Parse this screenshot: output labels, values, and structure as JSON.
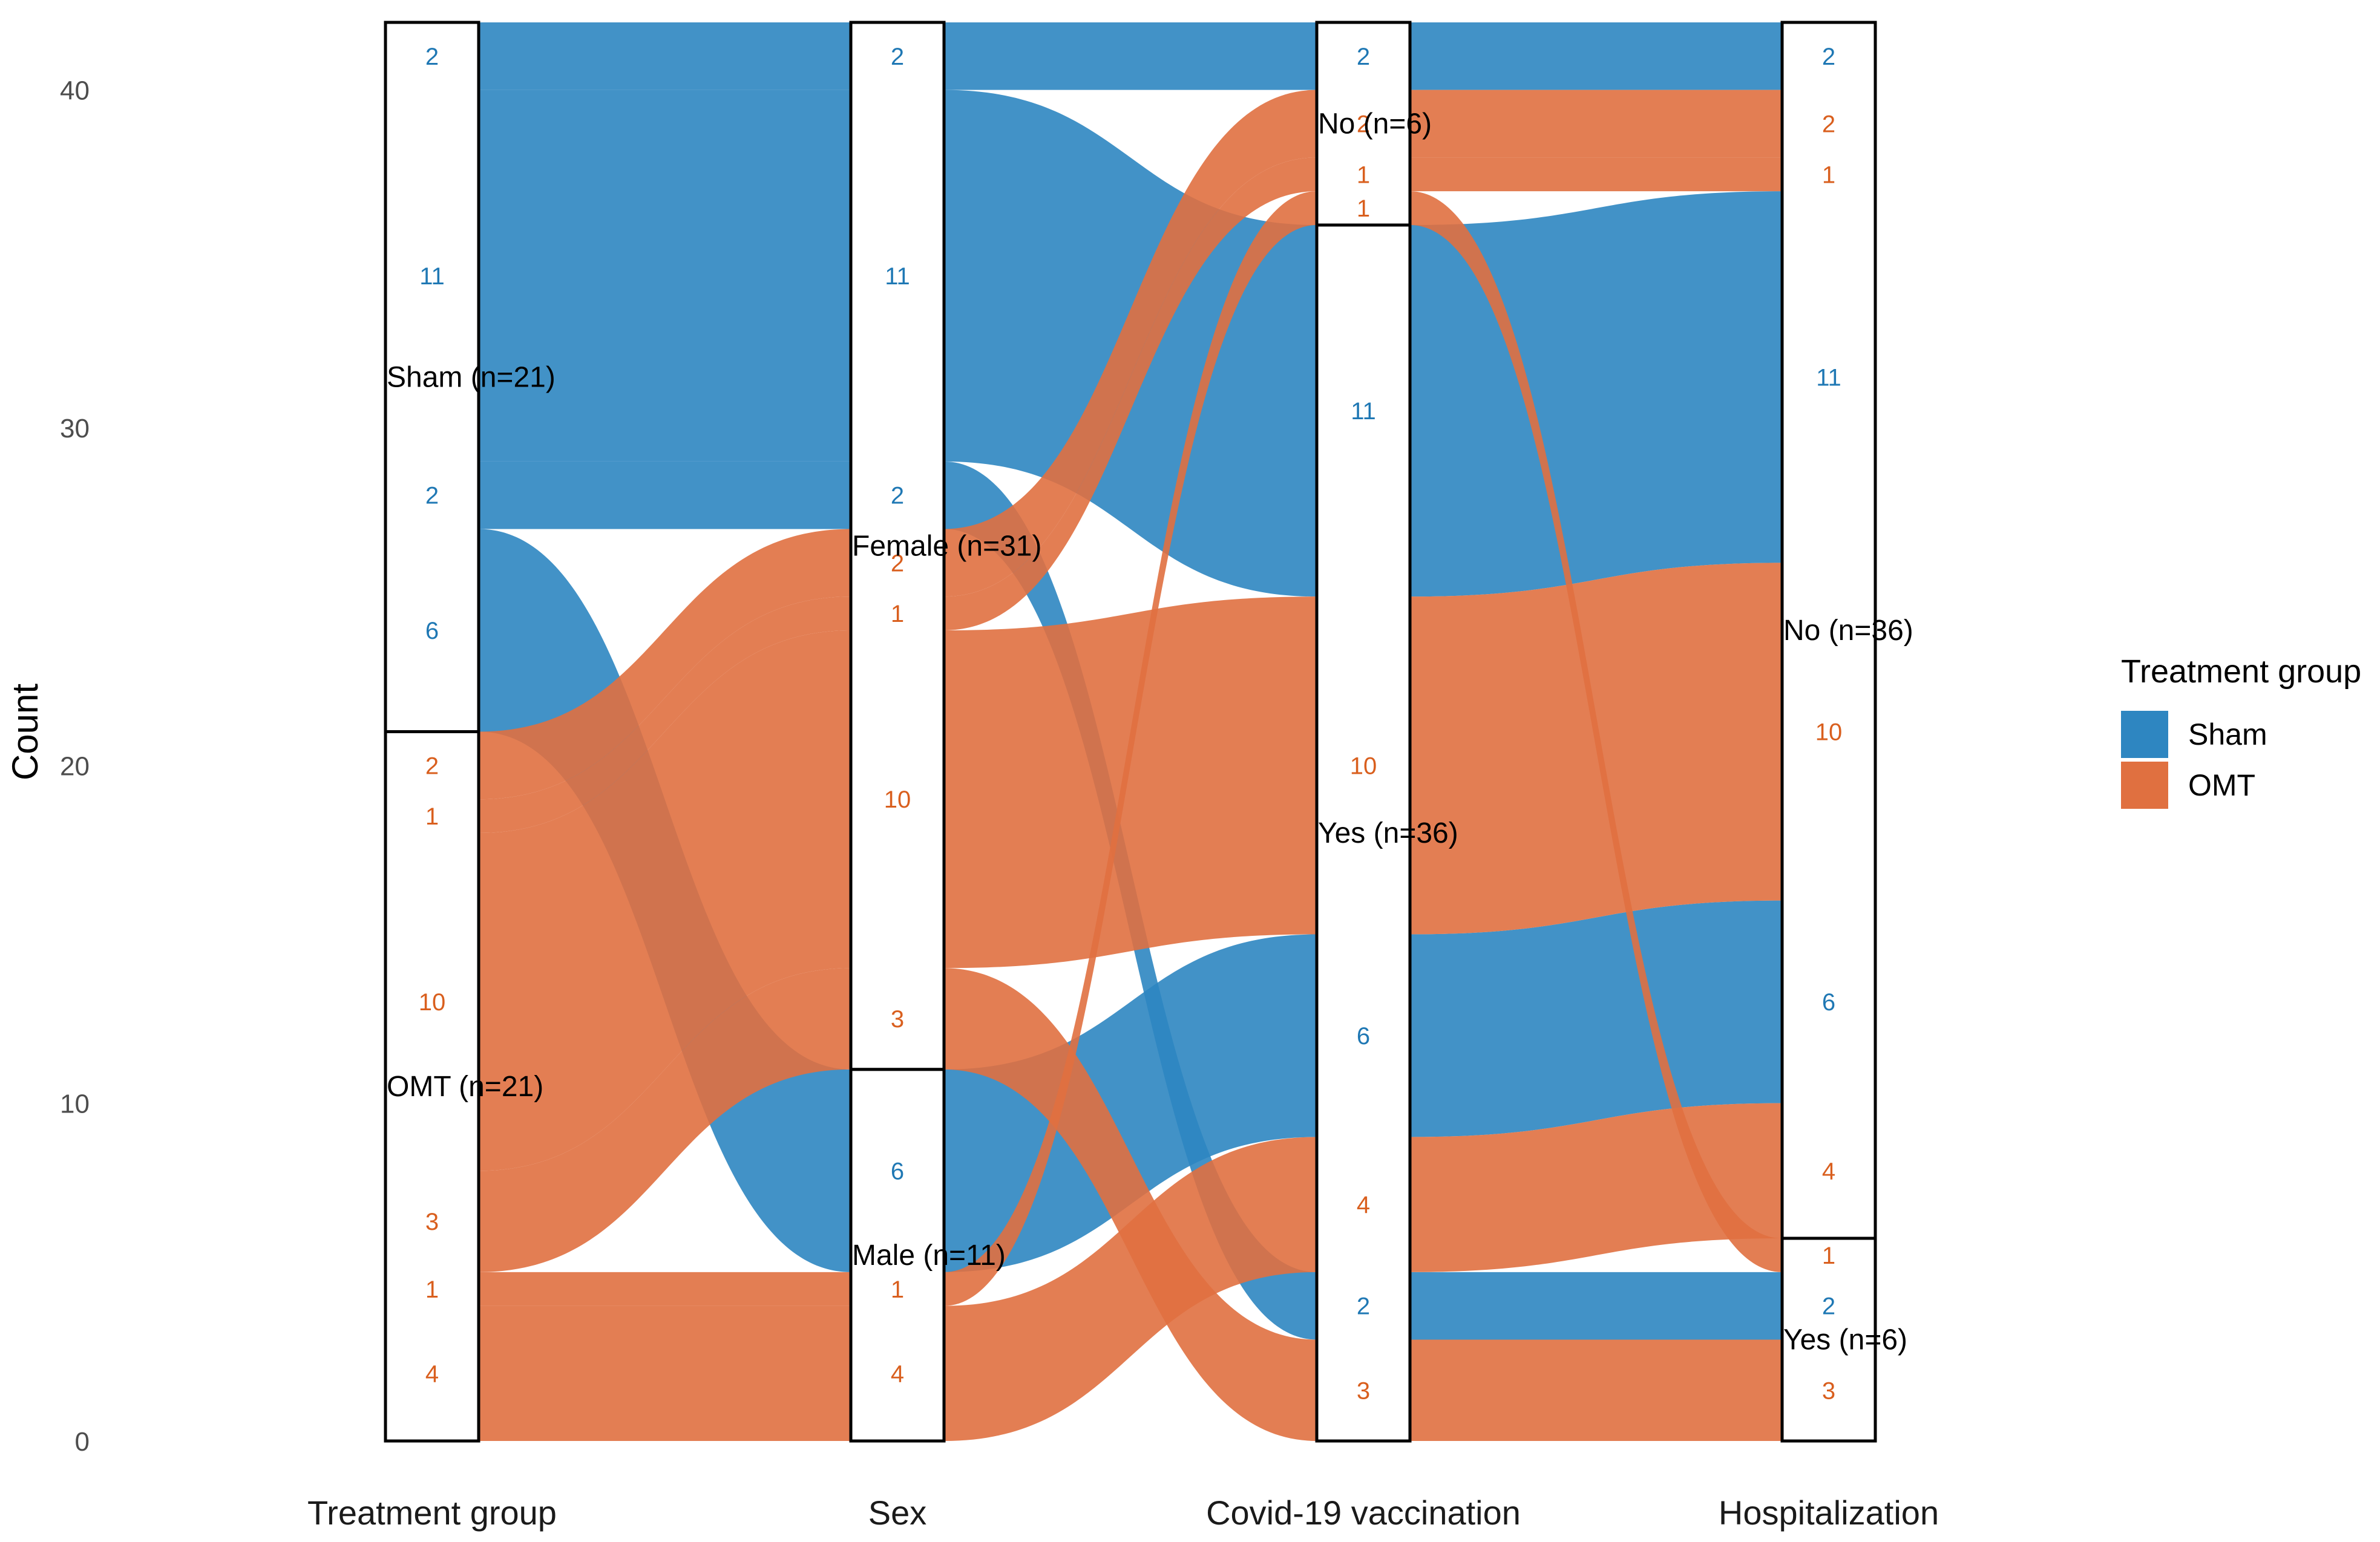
{
  "chart_data": {
    "type": "alluvial",
    "ylabel": "Count",
    "ylim": [
      0,
      42
    ],
    "yticks": [
      0,
      10,
      20,
      30,
      40
    ],
    "axes": [
      "Treatment group",
      "Sex",
      "Covid-19 vaccination",
      "Hospitalization"
    ],
    "strata": [
      [
        {
          "label": "Sham (n=21)",
          "n": 21,
          "top": 42
        },
        {
          "label": "OMT (n=21)",
          "n": 21,
          "top": 21
        }
      ],
      [
        {
          "label": "Female (n=31)",
          "n": 31,
          "top": 42
        },
        {
          "label": "Male (n=11)",
          "n": 11,
          "top": 11
        }
      ],
      [
        {
          "label": "No (n=6)",
          "n": 6,
          "top": 42
        },
        {
          "label": "Yes (n=36)",
          "n": 36,
          "top": 36
        }
      ],
      [
        {
          "label": "No (n=36)",
          "n": 36,
          "top": 42
        },
        {
          "label": "Yes (n=6)",
          "n": 6,
          "top": 6
        }
      ]
    ],
    "flows": [
      {
        "group": "Sham",
        "n": 2,
        "path": [
          "Sham",
          "Female",
          "No",
          "No"
        ],
        "y": [
          [
            40,
            42
          ],
          [
            40,
            42
          ],
          [
            40,
            42
          ],
          [
            40,
            42
          ]
        ]
      },
      {
        "group": "Sham",
        "n": 11,
        "path": [
          "Sham",
          "Female",
          "Yes",
          "No"
        ],
        "y": [
          [
            29,
            40
          ],
          [
            29,
            40
          ],
          [
            25,
            36
          ],
          [
            26,
            37
          ]
        ]
      },
      {
        "group": "Sham",
        "n": 2,
        "path": [
          "Sham",
          "Female",
          "Yes",
          "Yes"
        ],
        "y": [
          [
            27,
            29
          ],
          [
            27,
            29
          ],
          [
            3,
            5
          ],
          [
            3,
            5
          ]
        ]
      },
      {
        "group": "Sham",
        "n": 6,
        "path": [
          "Sham",
          "Male",
          "Yes",
          "No"
        ],
        "y": [
          [
            21,
            27
          ],
          [
            5,
            11
          ],
          [
            9,
            15
          ],
          [
            10,
            16
          ]
        ]
      },
      {
        "group": "OMT",
        "n": 2,
        "path": [
          "OMT",
          "Female",
          "No",
          "No"
        ],
        "y": [
          [
            19,
            21
          ],
          [
            25,
            27
          ],
          [
            38,
            40
          ],
          [
            38,
            40
          ]
        ]
      },
      {
        "group": "OMT",
        "n": 1,
        "path": [
          "OMT",
          "Female",
          "No",
          "No"
        ],
        "y": [
          [
            18,
            19
          ],
          [
            24,
            25
          ],
          [
            37,
            38
          ],
          [
            37,
            38
          ]
        ]
      },
      {
        "group": "OMT",
        "n": 10,
        "path": [
          "OMT",
          "Female",
          "Yes",
          "No"
        ],
        "y": [
          [
            8,
            18
          ],
          [
            14,
            24
          ],
          [
            15,
            25
          ],
          [
            16,
            26
          ]
        ]
      },
      {
        "group": "OMT",
        "n": 3,
        "path": [
          "OMT",
          "Female",
          "Yes",
          "Yes"
        ],
        "y": [
          [
            5,
            8
          ],
          [
            11,
            14
          ],
          [
            0,
            3
          ],
          [
            0,
            3
          ]
        ]
      },
      {
        "group": "OMT",
        "n": 1,
        "path": [
          "OMT",
          "Male",
          "No",
          "Yes"
        ],
        "y": [
          [
            4,
            5
          ],
          [
            4,
            5
          ],
          [
            36,
            37
          ],
          [
            5,
            6
          ]
        ]
      },
      {
        "group": "OMT",
        "n": 4,
        "path": [
          "OMT",
          "Male",
          "Yes",
          "No"
        ],
        "y": [
          [
            0,
            4
          ],
          [
            0,
            4
          ],
          [
            5,
            9
          ],
          [
            6,
            10
          ]
        ]
      }
    ],
    "count_labels": [
      [
        {
          "v": 2,
          "group": "Sham",
          "y": 41
        },
        {
          "v": 11,
          "group": "Sham",
          "y": 34.5
        },
        {
          "v": 2,
          "group": "Sham",
          "y": 28
        },
        {
          "v": 6,
          "group": "Sham",
          "y": 24
        },
        {
          "v": 2,
          "group": "OMT",
          "y": 20
        },
        {
          "v": 1,
          "group": "OMT",
          "y": 18.5
        },
        {
          "v": 10,
          "group": "OMT",
          "y": 13
        },
        {
          "v": 3,
          "group": "OMT",
          "y": 6.5
        },
        {
          "v": 1,
          "group": "OMT",
          "y": 4.5
        },
        {
          "v": 4,
          "group": "OMT",
          "y": 2
        }
      ],
      [
        {
          "v": 2,
          "group": "Sham",
          "y": 41
        },
        {
          "v": 11,
          "group": "Sham",
          "y": 34.5
        },
        {
          "v": 2,
          "group": "Sham",
          "y": 28
        },
        {
          "v": 2,
          "group": "OMT",
          "y": 26
        },
        {
          "v": 1,
          "group": "OMT",
          "y": 24.5
        },
        {
          "v": 10,
          "group": "OMT",
          "y": 19
        },
        {
          "v": 3,
          "group": "OMT",
          "y": 12.5
        },
        {
          "v": 6,
          "group": "Sham",
          "y": 8
        },
        {
          "v": 1,
          "group": "OMT",
          "y": 4.5
        },
        {
          "v": 4,
          "group": "OMT",
          "y": 2
        }
      ],
      [
        {
          "v": 2,
          "group": "Sham",
          "y": 41
        },
        {
          "v": 2,
          "group": "OMT",
          "y": 39
        },
        {
          "v": 1,
          "group": "OMT",
          "y": 37.5
        },
        {
          "v": 1,
          "group": "OMT",
          "y": 36.5
        },
        {
          "v": 11,
          "group": "Sham",
          "y": 30.5
        },
        {
          "v": 10,
          "group": "OMT",
          "y": 20
        },
        {
          "v": 6,
          "group": "Sham",
          "y": 12
        },
        {
          "v": 4,
          "group": "OMT",
          "y": 7
        },
        {
          "v": 2,
          "group": "Sham",
          "y": 4
        },
        {
          "v": 3,
          "group": "OMT",
          "y": 1.5
        }
      ],
      [
        {
          "v": 2,
          "group": "Sham",
          "y": 41
        },
        {
          "v": 2,
          "group": "OMT",
          "y": 39
        },
        {
          "v": 1,
          "group": "OMT",
          "y": 37.5
        },
        {
          "v": 11,
          "group": "Sham",
          "y": 31.5
        },
        {
          "v": 10,
          "group": "OMT",
          "y": 21
        },
        {
          "v": 6,
          "group": "Sham",
          "y": 13
        },
        {
          "v": 4,
          "group": "OMT",
          "y": 8
        },
        {
          "v": 1,
          "group": "OMT",
          "y": 5.5
        },
        {
          "v": 2,
          "group": "Sham",
          "y": 4
        },
        {
          "v": 3,
          "group": "OMT",
          "y": 1.5
        }
      ]
    ],
    "legend": {
      "title": "Treatment group",
      "position": "right",
      "items": [
        {
          "name": "Sham",
          "color": "#2E86C1"
        },
        {
          "name": "OMT",
          "color": "#E07040"
        }
      ]
    },
    "colors": {
      "Sham": "#2E86C1",
      "OMT": "#E07040",
      "Sham_text": "#1F78B4",
      "OMT_text": "#D95F1E"
    }
  }
}
